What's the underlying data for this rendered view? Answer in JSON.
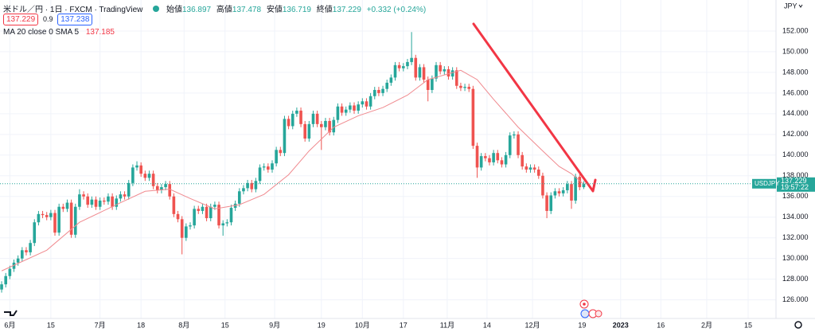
{
  "chart_data": {
    "type": "candlestick",
    "title": "米ドル／円 · 1日 · FXCM · TradingView",
    "ohlc_labels": [
      "始値",
      "高値",
      "安値",
      "終値"
    ],
    "change": "+0.332 (+0.24%)",
    "bid": 137.229,
    "spread": 0.9,
    "ask": 137.238,
    "ma_label": "MA 20 close 0 SMA 5",
    "symbol": "USDJPY",
    "countdown": "19:57:22",
    "currency": "JPY",
    "up_color": "#26a69a",
    "down_color": "#ef5350",
    "ma_color": "#f08a8f",
    "grid": true,
    "xlim": [
      -0.4,
      188.9
    ],
    "ylim": [
      124.2,
      155
    ],
    "yticks": [
      {
        "value": 126,
        "label": "126.000"
      },
      {
        "value": 128,
        "label": "128.000"
      },
      {
        "value": 130,
        "label": "130.000"
      },
      {
        "value": 132,
        "label": "132.000"
      },
      {
        "value": 134,
        "label": "134.000"
      },
      {
        "value": 136,
        "label": "136.000"
      },
      {
        "value": 138,
        "label": "138.000"
      },
      {
        "value": 140,
        "label": "140.000"
      },
      {
        "value": 142,
        "label": "142.000"
      },
      {
        "value": 144,
        "label": "144.000"
      },
      {
        "value": 146,
        "label": "146.000"
      },
      {
        "value": 148,
        "label": "148.000"
      },
      {
        "value": 150,
        "label": "150.000"
      },
      {
        "value": 152,
        "label": "152.000"
      }
    ],
    "xticks": [
      {
        "value": 2,
        "label": "6月"
      },
      {
        "value": 12,
        "label": "15"
      },
      {
        "value": 24,
        "label": "7月"
      },
      {
        "value": 34,
        "label": "18"
      },
      {
        "value": 44.5,
        "label": "8月"
      },
      {
        "value": 54.5,
        "label": "15"
      },
      {
        "value": 66.6,
        "label": "9月"
      },
      {
        "value": 78,
        "label": "19"
      },
      {
        "value": 88,
        "label": "10月"
      },
      {
        "value": 98,
        "label": "17"
      },
      {
        "value": 108.7,
        "label": "11月"
      },
      {
        "value": 118.4,
        "label": "14"
      },
      {
        "value": 129.5,
        "label": "12月"
      },
      {
        "value": 141.6,
        "label": "19"
      },
      {
        "value": 151,
        "label": "2023"
      },
      {
        "value": 160.8,
        "label": "16"
      },
      {
        "value": 172,
        "label": "2月"
      },
      {
        "value": 182.1,
        "label": "15"
      }
    ],
    "candles": [
      [
        127.0,
        127.8,
        126.7,
        127.5
      ],
      [
        127.5,
        128.6,
        127.2,
        128.3
      ],
      [
        128.3,
        129.3,
        128.0,
        129.0
      ],
      [
        129.0,
        129.9,
        128.7,
        129.6
      ],
      [
        129.6,
        130.3,
        129.3,
        130.0
      ],
      [
        130.0,
        131.1,
        129.7,
        130.8
      ],
      [
        130.8,
        131.1,
        130.3,
        130.6
      ],
      [
        130.6,
        131.8,
        130.3,
        131.5
      ],
      [
        131.5,
        133.8,
        131.2,
        133.5
      ],
      [
        133.5,
        134.6,
        133.2,
        134.3
      ],
      [
        134.3,
        134.6,
        133.9,
        134.2
      ],
      [
        134.2,
        134.5,
        133.7,
        134.0
      ],
      [
        134.0,
        134.7,
        133.7,
        134.4
      ],
      [
        134.4,
        134.7,
        132.2,
        132.5
      ],
      [
        132.5,
        135.3,
        132.2,
        135.0
      ],
      [
        135.0,
        135.3,
        134.5,
        134.8
      ],
      [
        134.8,
        135.7,
        134.5,
        135.4
      ],
      [
        135.4,
        135.7,
        132.0,
        132.3
      ],
      [
        132.3,
        135.3,
        132.0,
        135.0
      ],
      [
        135.0,
        136.7,
        134.7,
        136.2
      ],
      [
        136.2,
        136.5,
        135.7,
        136.0
      ],
      [
        136.0,
        136.3,
        134.9,
        135.2
      ],
      [
        135.2,
        136.0,
        134.9,
        135.7
      ],
      [
        135.7,
        136.0,
        134.7,
        135.0
      ],
      [
        135.0,
        135.9,
        134.7,
        135.6
      ],
      [
        135.6,
        135.9,
        135.2,
        135.5
      ],
      [
        135.5,
        136.3,
        135.2,
        136.0
      ],
      [
        136.0,
        136.3,
        134.7,
        135.0
      ],
      [
        135.0,
        136.1,
        134.7,
        135.8
      ],
      [
        135.8,
        136.5,
        135.5,
        136.2
      ],
      [
        136.2,
        136.5,
        135.7,
        136.0
      ],
      [
        136.0,
        137.6,
        135.7,
        137.3
      ],
      [
        137.3,
        139.1,
        137.0,
        138.8
      ],
      [
        138.8,
        139.4,
        138.5,
        139.0
      ],
      [
        139.0,
        139.3,
        137.9,
        138.2
      ],
      [
        138.2,
        138.5,
        137.5,
        137.8
      ],
      [
        137.8,
        138.5,
        137.5,
        138.2
      ],
      [
        138.2,
        138.5,
        136.7,
        137.0
      ],
      [
        137.0,
        137.3,
        136.3,
        136.6
      ],
      [
        136.6,
        137.2,
        136.3,
        136.9
      ],
      [
        136.9,
        137.5,
        136.6,
        137.2
      ],
      [
        137.2,
        137.5,
        135.7,
        136.0
      ],
      [
        136.0,
        136.3,
        134.0,
        134.3
      ],
      [
        134.3,
        134.6,
        133.5,
        133.8
      ],
      [
        133.8,
        134.1,
        130.4,
        132.0
      ],
      [
        132.0,
        133.4,
        131.7,
        133.1
      ],
      [
        133.1,
        133.5,
        132.8,
        133.2
      ],
      [
        133.2,
        135.1,
        132.9,
        134.8
      ],
      [
        134.8,
        135.1,
        134.3,
        134.6
      ],
      [
        134.6,
        135.3,
        134.3,
        135.0
      ],
      [
        135.0,
        135.3,
        133.6,
        133.9
      ],
      [
        133.9,
        135.3,
        133.6,
        135.0
      ],
      [
        135.0,
        135.5,
        134.7,
        135.2
      ],
      [
        135.2,
        135.5,
        132.9,
        133.2
      ],
      [
        133.2,
        133.7,
        132.2,
        133.4
      ],
      [
        133.4,
        133.8,
        133.1,
        133.5
      ],
      [
        133.5,
        135.2,
        133.2,
        134.9
      ],
      [
        134.9,
        135.6,
        134.6,
        135.3
      ],
      [
        135.3,
        136.8,
        135.0,
        136.5
      ],
      [
        136.5,
        137.1,
        136.2,
        136.8
      ],
      [
        136.8,
        137.6,
        136.5,
        137.3
      ],
      [
        137.3,
        137.6,
        136.4,
        136.7
      ],
      [
        136.7,
        137.8,
        136.4,
        137.5
      ],
      [
        137.5,
        139.1,
        137.2,
        138.8
      ],
      [
        138.8,
        139.2,
        138.5,
        138.9
      ],
      [
        138.9,
        139.2,
        138.3,
        138.6
      ],
      [
        138.6,
        139.5,
        138.3,
        139.2
      ],
      [
        139.2,
        140.8,
        138.9,
        140.5
      ],
      [
        140.5,
        140.8,
        139.9,
        140.2
      ],
      [
        140.2,
        143.8,
        139.9,
        143.5
      ],
      [
        143.5,
        143.8,
        142.5,
        142.8
      ],
      [
        142.8,
        144.3,
        142.5,
        144.0
      ],
      [
        144.0,
        144.6,
        143.7,
        144.3
      ],
      [
        144.3,
        144.6,
        142.7,
        143.0
      ],
      [
        143.0,
        143.3,
        141.3,
        141.6
      ],
      [
        141.6,
        143.3,
        141.3,
        143.0
      ],
      [
        143.0,
        144.3,
        142.7,
        144.0
      ],
      [
        144.0,
        144.3,
        142.7,
        143.0
      ],
      [
        143.0,
        143.3,
        140.5,
        142.7
      ],
      [
        142.7,
        143.6,
        142.4,
        143.3
      ],
      [
        143.3,
        143.6,
        141.9,
        142.2
      ],
      [
        142.2,
        143.7,
        141.9,
        143.4
      ],
      [
        143.4,
        145.0,
        143.1,
        144.7
      ],
      [
        144.7,
        145.0,
        143.8,
        144.1
      ],
      [
        144.1,
        144.7,
        143.8,
        144.4
      ],
      [
        144.4,
        145.1,
        144.1,
        144.8
      ],
      [
        144.8,
        145.1,
        144.0,
        144.3
      ],
      [
        144.3,
        145.2,
        144.0,
        144.9
      ],
      [
        144.9,
        145.5,
        144.6,
        145.2
      ],
      [
        145.2,
        145.5,
        144.4,
        144.7
      ],
      [
        144.7,
        146.0,
        144.4,
        145.7
      ],
      [
        145.7,
        146.6,
        145.4,
        146.3
      ],
      [
        146.3,
        146.6,
        145.7,
        146.0
      ],
      [
        146.0,
        146.7,
        145.7,
        146.4
      ],
      [
        146.4,
        147.3,
        146.1,
        147.0
      ],
      [
        147.0,
        147.8,
        146.7,
        147.5
      ],
      [
        147.5,
        149.0,
        147.2,
        148.7
      ],
      [
        148.7,
        149.0,
        148.1,
        148.4
      ],
      [
        148.4,
        148.9,
        148.1,
        148.6
      ],
      [
        148.6,
        149.3,
        148.3,
        149.0
      ],
      [
        149.0,
        151.9,
        148.7,
        149.4
      ],
      [
        149.4,
        149.7,
        147.2,
        147.5
      ],
      [
        147.5,
        148.8,
        147.2,
        148.5
      ],
      [
        148.5,
        148.8,
        147.0,
        147.3
      ],
      [
        147.3,
        147.6,
        145.2,
        146.3
      ],
      [
        146.3,
        147.7,
        146.0,
        147.4
      ],
      [
        147.4,
        149.0,
        147.1,
        148.7
      ],
      [
        148.7,
        149.0,
        147.8,
        148.1
      ],
      [
        148.1,
        148.6,
        147.8,
        148.3
      ],
      [
        148.3,
        148.6,
        147.3,
        147.6
      ],
      [
        147.6,
        148.5,
        147.3,
        148.2
      ],
      [
        148.2,
        148.5,
        146.4,
        146.7
      ],
      [
        146.7,
        147.0,
        146.2,
        146.5
      ],
      [
        146.5,
        146.9,
        146.2,
        146.6
      ],
      [
        146.6,
        146.9,
        146.1,
        146.4
      ],
      [
        146.4,
        146.7,
        140.6,
        140.9
      ],
      [
        140.9,
        141.2,
        137.8,
        138.8
      ],
      [
        138.8,
        140.2,
        138.5,
        139.9
      ],
      [
        139.9,
        140.2,
        139.4,
        139.7
      ],
      [
        139.7,
        140.0,
        139.0,
        139.3
      ],
      [
        139.3,
        140.5,
        139.0,
        140.2
      ],
      [
        140.2,
        140.5,
        139.2,
        139.5
      ],
      [
        139.5,
        139.8,
        138.8,
        139.1
      ],
      [
        139.1,
        140.3,
        138.8,
        140.0
      ],
      [
        140.0,
        142.2,
        139.7,
        141.9
      ],
      [
        141.9,
        142.3,
        141.6,
        142.0
      ],
      [
        142.0,
        142.3,
        139.7,
        140.0
      ],
      [
        140.0,
        140.3,
        138.6,
        138.9
      ],
      [
        138.9,
        139.2,
        138.3,
        138.6
      ],
      [
        138.6,
        139.1,
        138.3,
        138.8
      ],
      [
        138.8,
        139.1,
        138.3,
        138.6
      ],
      [
        138.6,
        138.9,
        137.7,
        138.0
      ],
      [
        138.0,
        138.3,
        135.8,
        136.1
      ],
      [
        136.1,
        136.4,
        133.9,
        134.6
      ],
      [
        134.6,
        136.4,
        134.3,
        136.1
      ],
      [
        136.1,
        136.8,
        135.8,
        136.5
      ],
      [
        136.5,
        136.8,
        136.0,
        136.3
      ],
      [
        136.3,
        136.9,
        136.0,
        136.6
      ],
      [
        136.6,
        137.5,
        136.3,
        137.2
      ],
      [
        137.2,
        137.5,
        134.8,
        135.6
      ],
      [
        135.6,
        138.2,
        135.3,
        137.9
      ],
      [
        137.9,
        138.2,
        136.6,
        136.897
      ],
      [
        136.897,
        137.478,
        136.719,
        137.229
      ]
    ],
    "ma": {
      "x": [
        0,
        11,
        19,
        29,
        35,
        41,
        46,
        52,
        58,
        64,
        70,
        75,
        81,
        87,
        93,
        99,
        104,
        112,
        116,
        120,
        126,
        132,
        136,
        139,
        142
      ],
      "values": [
        128.8,
        130.8,
        133.5,
        135.4,
        136.5,
        136.7,
        135.8,
        134.8,
        135.2,
        136.2,
        138.1,
        140.4,
        142.7,
        143.8,
        144.6,
        145.8,
        147.3,
        148.2,
        147.3,
        145.4,
        142.7,
        140.4,
        138.9,
        138.2,
        137.185
      ]
    }
  }
}
